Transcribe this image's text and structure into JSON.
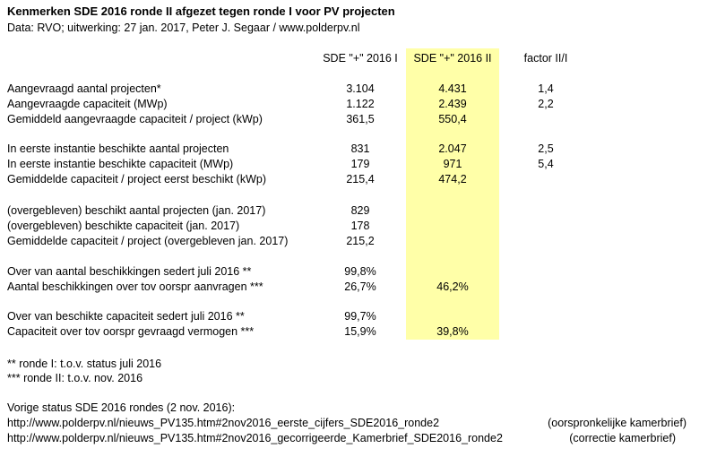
{
  "header": {
    "title": "Kenmerken SDE 2016 ronde II afgezet tegen ronde I voor PV projecten",
    "subtitle": "Data: RVO; uitwerking: 27 jan. 2017, Peter J. Segaar / www.polderpv.nl"
  },
  "columns": {
    "col1": "SDE \"+\" 2016 I",
    "col2": "SDE \"+\" 2016 II",
    "col3": "factor II/I"
  },
  "rows": [
    {
      "label": "Aangevraagd aantal projecten*",
      "v1": "3.104",
      "v2": "4.431",
      "v3": "1,4"
    },
    {
      "label": "Aangevraagde capaciteit (MWp)",
      "v1": "1.122",
      "v2": "2.439",
      "v3": "2,2"
    },
    {
      "label": "Gemiddeld aangevraagde capaciteit / project (kWp)",
      "v1": "361,5",
      "v2": "550,4",
      "v3": ""
    },
    {
      "label": "In eerste instantie beschikte aantal projecten",
      "v1": "831",
      "v2": "2.047",
      "v3": "2,5"
    },
    {
      "label": "In eerste instantie beschikte capaciteit (MWp)",
      "v1": "179",
      "v2": "971",
      "v3": "5,4"
    },
    {
      "label": "Gemiddelde capaciteit / project eerst beschikt (kWp)",
      "v1": "215,4",
      "v2": "474,2",
      "v3": ""
    },
    {
      "label": "(overgebleven) beschikt aantal projecten (jan. 2017)",
      "v1": "829",
      "v2": "",
      "v3": ""
    },
    {
      "label": "(overgebleven) beschikte capaciteit (jan. 2017)",
      "v1": "178",
      "v2": "",
      "v3": ""
    },
    {
      "label": "Gemiddelde capaciteit / project (overgebleven jan. 2017)",
      "v1": "215,2",
      "v2": "",
      "v3": ""
    },
    {
      "label": "Over van aantal beschikkingen sedert juli 2016 **",
      "v1": "99,8%",
      "v2": "",
      "v3": ""
    },
    {
      "label": "Aantal beschikkingen over tov oorspr aanvragen ***",
      "v1": "26,7%",
      "v2": "46,2%",
      "v3": ""
    },
    {
      "label": "Over van beschikte capaciteit sedert juli 2016 **",
      "v1": "99,7%",
      "v2": "",
      "v3": ""
    },
    {
      "label": "Capaciteit over tov oorspr gevraagd vermogen ***",
      "v1": "15,9%",
      "v2": "39,8%",
      "v3": ""
    }
  ],
  "notes": {
    "note1": "** ronde I: t.o.v. status juli 2016",
    "note2": "*** ronde II: t.o.v. nov. 2016"
  },
  "footer": {
    "heading": "Vorige status SDE 2016 rondes (2 nov. 2016):",
    "link1": "http://www.polderpv.nl/nieuws_PV135.htm#2nov2016_eerste_cijfers_SDE2016_ronde2",
    "link1_note": "(oorspronkelijke kamerbrief)",
    "link2": "http://www.polderpv.nl/nieuws_PV135.htm#2nov2016_gecorrigeerde_Kamerbrief_SDE2016_ronde2",
    "link2_note": "(correctie kamerbrief)"
  },
  "colors": {
    "highlight": "#ffffa8"
  }
}
